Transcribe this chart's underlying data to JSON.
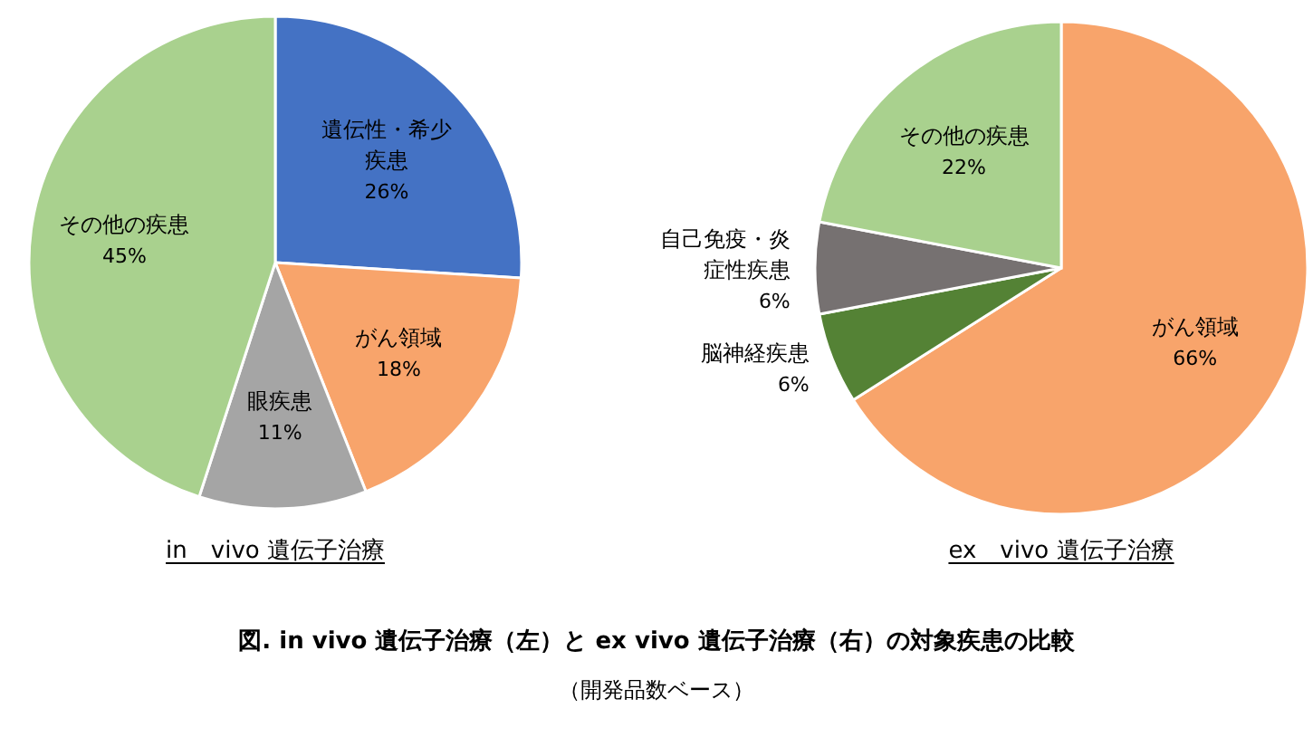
{
  "chart_data": [
    {
      "type": "pie",
      "title": "in　vivo 遺伝子治療",
      "categories": [
        "遺伝性・希少疾患",
        "がん領域",
        "眼疾患",
        "その他の疾患"
      ],
      "values": [
        26,
        18,
        11,
        45
      ],
      "value_labels": [
        "26%",
        "18%",
        "11%",
        "45%"
      ],
      "colors": [
        "#4472c4",
        "#f8a46b",
        "#a5a5a5",
        "#a9d18e"
      ],
      "annotations": [
        "図. in vivo 遺伝子治療（左）と ex vivo 遺伝子治療（右）の対象疾患の比較",
        "（開発品数ベース）"
      ]
    },
    {
      "type": "pie",
      "title": "ex　vivo 遺伝子治療",
      "categories": [
        "がん領域",
        "脳神経疾患",
        "自己免疫・炎症性疾患",
        "その他の疾患"
      ],
      "values": [
        66,
        6,
        6,
        22
      ],
      "value_labels": [
        "66%",
        "6%",
        "6%",
        "22%"
      ],
      "colors": [
        "#f8a46b",
        "#548235",
        "#767171",
        "#a9d18e"
      ]
    }
  ]
}
